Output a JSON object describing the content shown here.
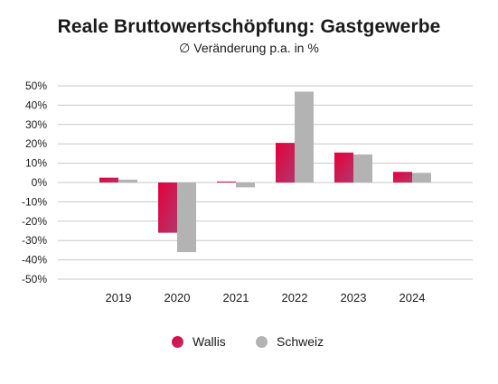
{
  "chart_data": {
    "type": "bar",
    "title": "Reale Bruttowertschöpfung: Gastgewerbe",
    "subtitle": "∅ Veränderung p.a. in %",
    "categories": [
      "2019",
      "2020",
      "2021",
      "2022",
      "2023",
      "2024"
    ],
    "series": [
      {
        "name": "Wallis",
        "values": [
          2.5,
          -26,
          0.5,
          20.5,
          15.5,
          5.5
        ],
        "color": "#e3003c",
        "color_gradient_end": "#b3376c"
      },
      {
        "name": "Schweiz",
        "values": [
          1.5,
          -36,
          -2.5,
          47,
          14.5,
          5
        ],
        "color": "#b3b3b3"
      }
    ],
    "ylim": [
      -50,
      50
    ],
    "yticks": [
      "50%",
      "40%",
      "30%",
      "20%",
      "10%",
      "0%",
      "-10%",
      "-20%",
      "-30%",
      "-40%",
      "-50%"
    ],
    "ytick_values": [
      50,
      40,
      30,
      20,
      10,
      0,
      -10,
      -20,
      -30,
      -40,
      -50
    ],
    "grid": true,
    "legend_position": "bottom"
  }
}
